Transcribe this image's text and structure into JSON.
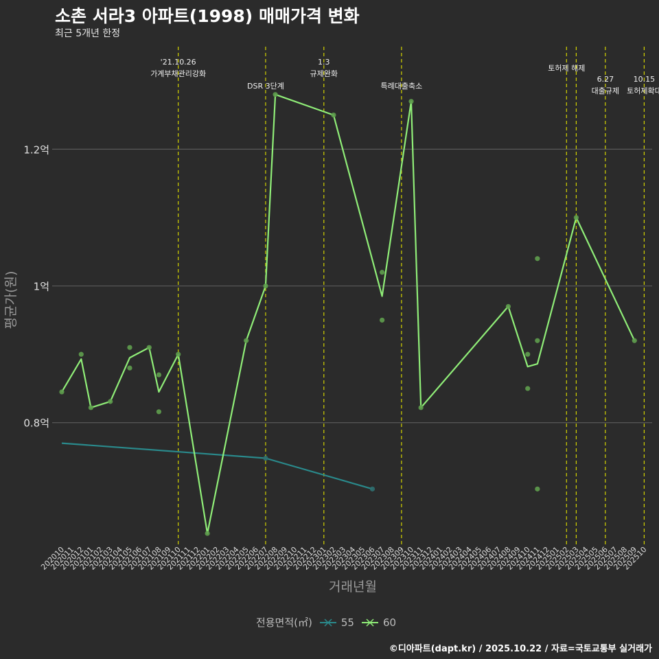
{
  "title": "소촌 서라3 아파트(1998) 매매가격 변화",
  "subtitle": "최근 5개년 한정",
  "caption": "©디아파트(dapt.kr) / 2025.10.22 / 자료=국토교통부 실거래가",
  "legend": {
    "title": "전용면적(㎡)",
    "items": [
      {
        "label": "55",
        "color": "#2a8a8c"
      },
      {
        "label": "60",
        "color": "#90ee78"
      }
    ]
  },
  "chart_data": {
    "type": "line",
    "title": "소촌 서라3 아파트(1998) 매매가격 변화",
    "xlabel": "거래년월",
    "ylabel": "평균가(원)",
    "ylim": [
      0.62,
      1.35
    ],
    "y_ticks": [
      {
        "value": 0.8,
        "label": "0.8억"
      },
      {
        "value": 1.0,
        "label": "1억"
      },
      {
        "value": 1.2,
        "label": "1.2억"
      }
    ],
    "categories": [
      "202010",
      "202011",
      "202012",
      "202101",
      "202102",
      "202103",
      "202104",
      "202105",
      "202106",
      "202107",
      "202108",
      "202109",
      "202110",
      "202111",
      "202112",
      "202201",
      "202202",
      "202203",
      "202204",
      "202205",
      "202206",
      "202207",
      "202208",
      "202209",
      "202210",
      "202211",
      "202212",
      "202301",
      "202302",
      "202303",
      "202304",
      "202305",
      "202306",
      "202307",
      "202308",
      "202309",
      "202310",
      "202311",
      "202312",
      "202401",
      "202402",
      "202403",
      "202404",
      "202405",
      "202406",
      "202407",
      "202408",
      "202409",
      "202410",
      "202411",
      "202412",
      "202501",
      "202502",
      "202503",
      "202504",
      "202505",
      "202506",
      "202507",
      "202508",
      "202509",
      "202510"
    ],
    "series": [
      {
        "name": "55",
        "color": "#2a8a8c",
        "line": [
          [
            0,
            0.77
          ],
          [
            21,
            0.748
          ],
          [
            32,
            0.703
          ]
        ],
        "points": [
          [
            21,
            0.748
          ],
          [
            32,
            0.703
          ]
        ]
      },
      {
        "name": "60",
        "color": "#90ee78",
        "line": [
          [
            0,
            0.845
          ],
          [
            2,
            0.893
          ],
          [
            3,
            0.822
          ],
          [
            5,
            0.831
          ],
          [
            7,
            0.895
          ],
          [
            9,
            0.91
          ],
          [
            10,
            0.845
          ],
          [
            12,
            0.9
          ],
          [
            15,
            0.638
          ],
          [
            19,
            0.92
          ],
          [
            21,
            1.0
          ],
          [
            22,
            1.28
          ],
          [
            28,
            1.25
          ],
          [
            33,
            0.985
          ],
          [
            36,
            1.27
          ],
          [
            37,
            0.822
          ],
          [
            46,
            0.97
          ],
          [
            48,
            0.882
          ],
          [
            49,
            0.886
          ],
          [
            53,
            1.1
          ],
          [
            59,
            0.92
          ]
        ],
        "points": [
          [
            0,
            0.845
          ],
          [
            2,
            0.9
          ],
          [
            3,
            0.822
          ],
          [
            5,
            0.831
          ],
          [
            7,
            0.91
          ],
          [
            7,
            0.88
          ],
          [
            9,
            0.91
          ],
          [
            10,
            0.87
          ],
          [
            10,
            0.816
          ],
          [
            12,
            0.9
          ],
          [
            15,
            0.638
          ],
          [
            19,
            0.92
          ],
          [
            21,
            1.0
          ],
          [
            22,
            1.28
          ],
          [
            28,
            1.25
          ],
          [
            33,
            1.02
          ],
          [
            33,
            0.95
          ],
          [
            36,
            1.27
          ],
          [
            37,
            0.822
          ],
          [
            46,
            0.97
          ],
          [
            48,
            0.9
          ],
          [
            48,
            0.85
          ],
          [
            49,
            1.04
          ],
          [
            49,
            0.92
          ],
          [
            49,
            0.703
          ],
          [
            53,
            1.1
          ],
          [
            59,
            0.92
          ]
        ]
      }
    ],
    "events": [
      {
        "x": 12,
        "lines": [
          "'21.10.26",
          "가계부채관리강화"
        ]
      },
      {
        "x": 21,
        "lines": [
          "DSR 3단계"
        ]
      },
      {
        "x": 27,
        "lines": [
          "1.3",
          "규제완화"
        ]
      },
      {
        "x": 35,
        "lines": [
          "특례대출축소"
        ]
      },
      {
        "x": 52,
        "lines": [
          "토허제 해제"
        ]
      },
      {
        "x": 53,
        "lines": []
      },
      {
        "x": 56,
        "lines": [
          "6.27",
          "대출규제"
        ]
      },
      {
        "x": 60,
        "lines": [
          "10.15",
          "토허제확대"
        ]
      }
    ]
  }
}
